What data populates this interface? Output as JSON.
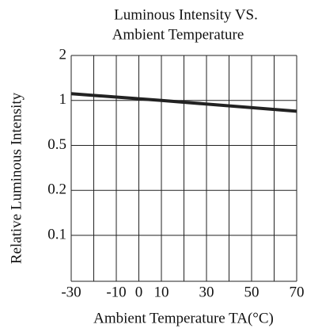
{
  "chart_data": {
    "type": "line",
    "title": [
      "Luminous Intensity VS.",
      "Ambient Temperature"
    ],
    "x_label": "Ambient Temperature TA(°C)",
    "y_label": "Relative Luminous Intensity",
    "xlim": [
      -30,
      70
    ],
    "xticks": [
      -30,
      -10,
      0,
      10,
      30,
      50,
      70
    ],
    "ylim": [
      0,
      2
    ],
    "yticks": [
      2,
      1,
      0.5,
      0.2,
      0.1
    ],
    "grid": true,
    "series": [
      {
        "name": "Luminous intensity",
        "color": "#222222",
        "x": [
          -30,
          10,
          70
        ],
        "values": [
          1.15,
          1.0,
          0.88
        ]
      }
    ]
  }
}
